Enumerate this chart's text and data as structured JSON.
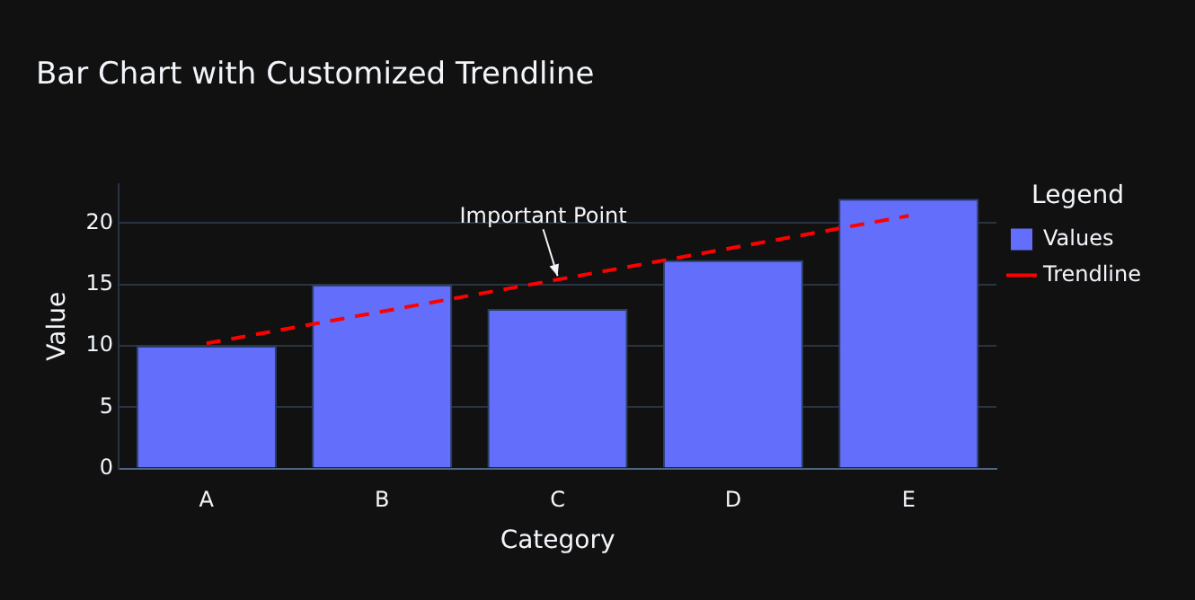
{
  "chart_data": {
    "type": "bar",
    "title": "Bar Chart with Customized Trendline",
    "xlabel": "Category",
    "ylabel": "Value",
    "legend_title": "Legend",
    "categories": [
      "A",
      "B",
      "C",
      "D",
      "E"
    ],
    "series": [
      {
        "name": "Values",
        "color": "#636efa",
        "values": [
          10,
          15,
          13,
          17,
          22
        ]
      },
      {
        "name": "Trendline",
        "type": "line",
        "color": "#ff0000",
        "line_style": "dashed",
        "marker": "none",
        "values": [
          10.2,
          12.8,
          15.4,
          18,
          20.6
        ]
      }
    ],
    "ylim": [
      0,
      23.2
    ],
    "yticks": [
      0,
      5,
      10,
      15,
      20
    ],
    "grid": "y",
    "legend": "right",
    "annotations": [
      {
        "text": "Important Point",
        "x": "C",
        "y": 15.4
      }
    ]
  }
}
